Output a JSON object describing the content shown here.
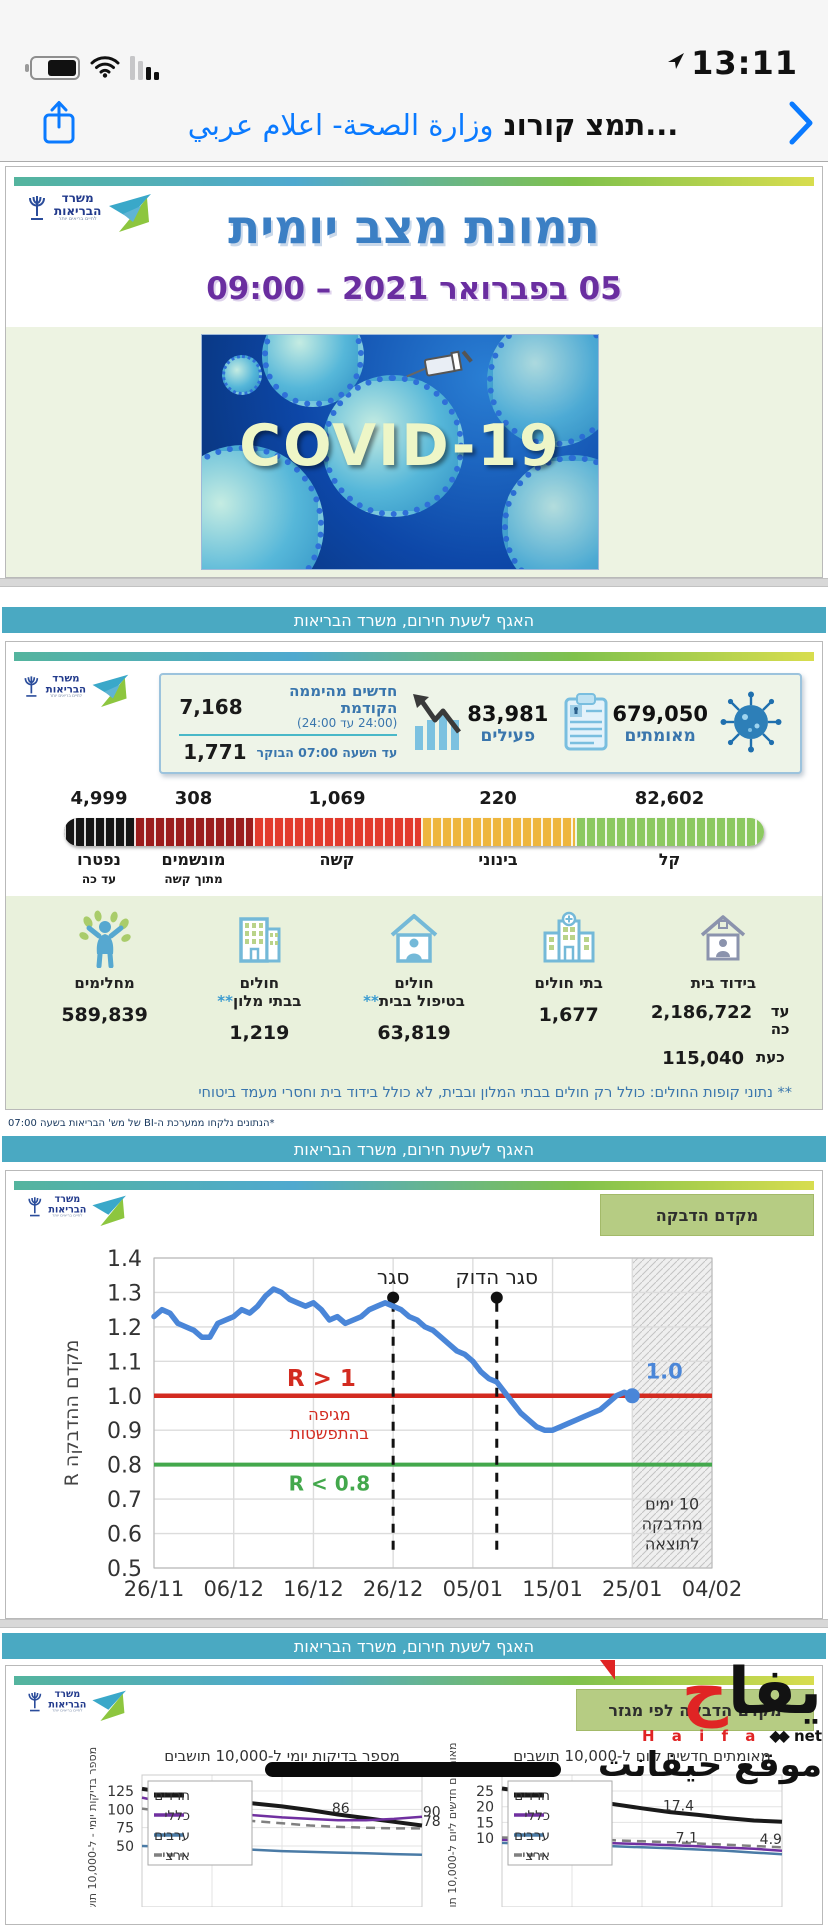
{
  "status_bar": {
    "time": "13:11"
  },
  "nav": {
    "title_arabic": "وزارة الصحة- اعلام عربي",
    "title_hebrew": "תמצ קורונ..."
  },
  "logo": {
    "line1": "משרד",
    "line2": "הבריאות",
    "line3": "לחיים בריאים יותר"
  },
  "report": {
    "title": "תמונת מצב יומית",
    "datetime": "05 בפברואר 2021 – 09:00",
    "covid_text": "COVID-19",
    "dept_banner": "האגף לשעת חירום, משרד הבריאות"
  },
  "summary": {
    "confirmed": {
      "value": "679,050",
      "label": "מאומתים"
    },
    "active": {
      "value": "83,981",
      "label": "פעילים"
    },
    "new_cases": {
      "value": "7,168",
      "label": "חדשים מהיממה הקודמת",
      "sublabel": "(24:00 עד 24:00)",
      "morning_value": "1,771",
      "morning_label": "עד השעה 07:00 הבוקר"
    }
  },
  "severity": [
    {
      "value": "4,999",
      "label": "נפטרו",
      "sublabel": "עד כה",
      "color": "#161616"
    },
    {
      "value": "308",
      "label": "מונשמים",
      "sublabel": "מתוך קשה",
      "color": "#9c1c1c"
    },
    {
      "value": "1,069",
      "label": "קשה",
      "sublabel": "",
      "color": "#e23a2c"
    },
    {
      "value": "220",
      "label": "בינוני",
      "sublabel": "",
      "color": "#eeb63e"
    },
    {
      "value": "82,602",
      "label": "קל",
      "sublabel": "",
      "color": "#8cc960"
    }
  ],
  "facilities": [
    {
      "label": "בידוד בית",
      "rows": [
        {
          "k": "עד כה",
          "v": "2,186,722"
        },
        {
          "k": "כעת",
          "v": "115,040"
        }
      ]
    },
    {
      "label": "בתי חולים",
      "value": "1,677"
    },
    {
      "label": "חולים",
      "label2": "בטיפול בבית",
      "stars": "**",
      "value": "63,819"
    },
    {
      "label": "חולים",
      "label2": "בבתי מלון",
      "stars": "**",
      "value": "1,219"
    },
    {
      "label": "מחלימים",
      "value": "589,839"
    }
  ],
  "notes": {
    "footnote": "** נתוני קופות החולים: כולל רק חולים בבתי המלון ובבית, לא כולל בידוד בית וחסרי מעמד ביטוחי",
    "source": "*הנתונים נלקחו ממערכת ה-BI של מש' הבריאות בשעה 07:00"
  },
  "r_section": {
    "badge": "מקדם הדבקה"
  },
  "sector_section": {
    "badge": "מקדם הדבקה לפי מגזר"
  },
  "watermark": {
    "big_red": "ح",
    "big_black": "يفا",
    "latin": "H a i f a",
    "diamonds": "◆◆",
    "net": "net",
    "sub": "موقع حيفانت"
  },
  "chart_data": [
    {
      "type": "line",
      "title": "מקדם הדבקה",
      "ylabel": "מקדם ההדבקה R",
      "ylim": [
        0.5,
        1.4
      ],
      "yticks": [
        "1.4",
        "1.3",
        "1.2",
        "1.1",
        "1.0",
        "0.9",
        "0.8",
        "0.7",
        "0.6",
        "0.5"
      ],
      "xticklabels": [
        "26/11",
        "06/12",
        "16/12",
        "26/12",
        "05/01",
        "15/01",
        "25/01",
        "04/02"
      ],
      "xlim_days": [
        0,
        70
      ],
      "grid": true,
      "line_color": "#4a86d8",
      "series": [
        {
          "name": "מקדם הדבקה R",
          "points": [
            [
              0,
              1.23
            ],
            [
              1,
              1.25
            ],
            [
              2,
              1.24
            ],
            [
              3,
              1.21
            ],
            [
              4,
              1.2
            ],
            [
              5,
              1.19
            ],
            [
              6,
              1.17
            ],
            [
              7,
              1.17
            ],
            [
              8,
              1.21
            ],
            [
              9,
              1.22
            ],
            [
              10,
              1.23
            ],
            [
              11,
              1.25
            ],
            [
              12,
              1.24
            ],
            [
              13,
              1.26
            ],
            [
              14,
              1.29
            ],
            [
              15,
              1.31
            ],
            [
              16,
              1.3
            ],
            [
              17,
              1.28
            ],
            [
              18,
              1.27
            ],
            [
              19,
              1.26
            ],
            [
              20,
              1.27
            ],
            [
              21,
              1.25
            ],
            [
              22,
              1.22
            ],
            [
              23,
              1.23
            ],
            [
              24,
              1.21
            ],
            [
              25,
              1.22
            ],
            [
              26,
              1.23
            ],
            [
              27,
              1.25
            ],
            [
              28,
              1.26
            ],
            [
              29,
              1.27
            ],
            [
              30,
              1.26
            ],
            [
              31,
              1.25
            ],
            [
              32,
              1.23
            ],
            [
              33,
              1.22
            ],
            [
              34,
              1.2
            ],
            [
              35,
              1.19
            ],
            [
              36,
              1.17
            ],
            [
              37,
              1.15
            ],
            [
              38,
              1.13
            ],
            [
              39,
              1.12
            ],
            [
              40,
              1.1
            ],
            [
              41,
              1.07
            ],
            [
              42,
              1.05
            ],
            [
              43,
              1.04
            ],
            [
              44,
              1.01
            ],
            [
              45,
              0.98
            ],
            [
              46,
              0.95
            ],
            [
              47,
              0.93
            ],
            [
              48,
              0.91
            ],
            [
              49,
              0.9
            ],
            [
              50,
              0.9
            ],
            [
              51,
              0.91
            ],
            [
              52,
              0.92
            ],
            [
              53,
              0.93
            ],
            [
              54,
              0.94
            ],
            [
              55,
              0.95
            ],
            [
              56,
              0.96
            ],
            [
              57,
              0.98
            ],
            [
              58,
              1.0
            ],
            [
              59,
              1.01
            ],
            [
              60,
              1.0
            ]
          ]
        }
      ],
      "ref_lines": [
        {
          "y": 1.0,
          "color": "#d32b20",
          "label": "R > 1",
          "sublabel1": "מגיפה",
          "sublabel2": "בהתפשטות"
        },
        {
          "y": 0.8,
          "color": "#43a84c",
          "label": "R < 0.8"
        }
      ],
      "events": [
        {
          "day": 30,
          "label": "סגר"
        },
        {
          "day": 43,
          "label": "סגר הדוק"
        }
      ],
      "end_point": {
        "day": 60,
        "value": 1.0,
        "label": "1.0"
      },
      "shaded": {
        "from_day": 60,
        "to_day": 70,
        "label": [
          "10 ימים",
          "מהדבקה",
          "לתוצאה"
        ]
      }
    },
    {
      "type": "line",
      "title": "מספר בדיקות יומי ל-10,000 תושבים",
      "ylabel": "מספר בדיקות יומי - ל-10,000 תושבים",
      "yticks": [
        125,
        100,
        75,
        50
      ],
      "ylim": [
        35,
        133
      ],
      "grid": true,
      "legend_position": "upper-left",
      "series": [
        {
          "name": "חרדים",
          "color": "#1a1a1a",
          "width": 4,
          "values": [
            128,
            122,
            117,
            112,
            108,
            104,
            99,
            93,
            88,
            83,
            78
          ]
        },
        {
          "name": "כללי",
          "color": "#7030a0",
          "width": 2.5,
          "values": [
            116,
            108,
            101,
            96,
            92,
            89,
            87,
            85,
            85,
            87,
            90
          ]
        },
        {
          "name": "ערבים",
          "color": "#4a7ba6",
          "width": 2.5,
          "values": [
            50,
            49,
            48,
            47,
            45,
            43,
            42,
            41,
            40,
            39,
            38
          ]
        },
        {
          "name": "ארצי",
          "color": "#808080",
          "width": 2.5,
          "dashed": true,
          "values": [
            101,
            96,
            91,
            87,
            84,
            81,
            78,
            76,
            75,
            74,
            74
          ]
        }
      ],
      "point_labels": [
        {
          "text": "86",
          "x": 7.1,
          "y": 95
        },
        {
          "text": "90",
          "x": 10.35,
          "y": 90
        },
        {
          "text": "78",
          "x": 10.35,
          "y": 77
        }
      ]
    },
    {
      "type": "line",
      "title": "מאומתים חדשים ליום ל-10,000 תושבים",
      "ylabel": "מאומתים חדשים ליום ל-10,000 תושבים",
      "yticks": [
        25,
        20,
        15,
        10
      ],
      "ylim": [
        4,
        28
      ],
      "grid": true,
      "legend_position": "upper-left",
      "series": [
        {
          "name": "חרדים",
          "color": "#1a1a1a",
          "width": 4,
          "values": [
            25.8,
            24.5,
            23.2,
            22,
            20.8,
            19.5,
            18.3,
            17.4,
            16.4,
            15.6,
            15.2
          ]
        },
        {
          "name": "כללי",
          "color": "#7030a0",
          "width": 2.5,
          "values": [
            9.5,
            9.2,
            9.0,
            8.7,
            8.4,
            8.1,
            7.8,
            7.4,
            7.0,
            6.6,
            6.0
          ]
        },
        {
          "name": "ערבים",
          "color": "#4a7ba6",
          "width": 2.5,
          "values": [
            8.5,
            8.2,
            8.0,
            7.7,
            7.4,
            7.1,
            6.8,
            6.4,
            6.0,
            5.4,
            4.9
          ]
        },
        {
          "name": "ארצי",
          "color": "#808080",
          "width": 2.5,
          "dashed": true,
          "values": [
            10.2,
            10.0,
            9.8,
            9.6,
            9.3,
            9.0,
            8.7,
            8.3,
            7.9,
            7.5,
            7.1
          ]
        }
      ],
      "point_labels": [
        {
          "text": "17.4",
          "x": 6.3,
          "y": 18.8
        },
        {
          "text": "7.1",
          "x": 6.6,
          "y": 8.6
        },
        {
          "text": "4.9",
          "x": 9.6,
          "y": 8.2
        }
      ]
    }
  ]
}
